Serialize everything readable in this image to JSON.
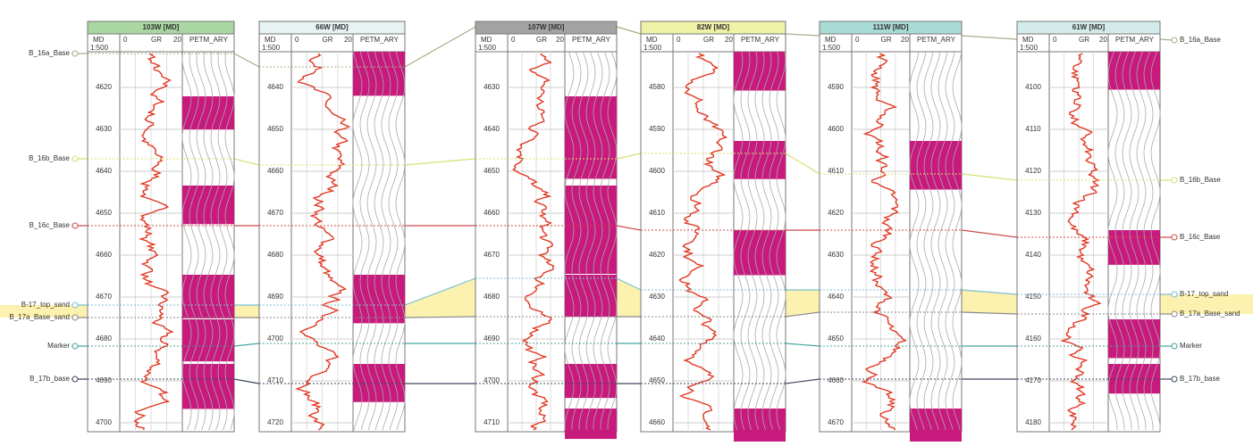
{
  "track_header": [
    "MD",
    "0",
    "GR",
    "20",
    "PETM_ARY"
  ],
  "scale": "1:500",
  "wells": [
    {
      "title": "103W [MD]",
      "depths": [
        "4620",
        "4630",
        "4640",
        "4650",
        "4660",
        "4670",
        "4680",
        "4690",
        "4700"
      ]
    },
    {
      "title": "66W [MD]",
      "depths": [
        "4640",
        "4650",
        "4660",
        "4670",
        "4680",
        "4690",
        "4700",
        "4710",
        "4720"
      ]
    },
    {
      "title": "107W [MD]",
      "depths": [
        "4630",
        "4640",
        "4650",
        "4660",
        "4670",
        "4680",
        "4690",
        "4700",
        "4710"
      ]
    },
    {
      "title": "82W [MD]",
      "depths": [
        "4580",
        "4590",
        "4600",
        "4610",
        "4620",
        "4630",
        "4640",
        "4650",
        "4660"
      ]
    },
    {
      "title": "111W [MD]",
      "depths": [
        "4590",
        "4600",
        "4610",
        "4620",
        "4630",
        "4640",
        "4650",
        "4660",
        "4670"
      ]
    },
    {
      "title": "61W [MD]",
      "depths": [
        "4100",
        "4110",
        "4120",
        "4130",
        "4140",
        "4150",
        "4160",
        "4170",
        "4180"
      ]
    }
  ],
  "markers_left": [
    "B_16a_Base",
    "B_16b_Base",
    "B_16c_Base",
    "B-17_top_sand",
    "B_17a_Base_sand",
    "Marker",
    "B_17b_base"
  ],
  "markers_right": [
    "B_16a_Base",
    "B_16b_Base",
    "B_16c_Base",
    "B-17_top_sand",
    "B_17a_Base_sand",
    "Marker",
    "B_17b_base"
  ]
}
